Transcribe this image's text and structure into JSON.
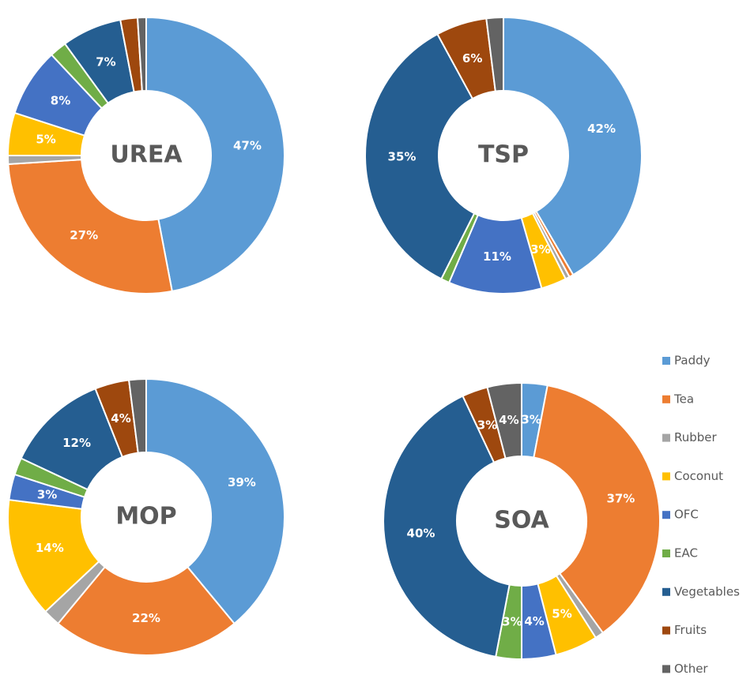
{
  "chart_data": [
    {
      "type": "donut",
      "title": "UREA",
      "categories": [
        "Paddy",
        "Tea",
        "Rubber",
        "Coconut",
        "OFC",
        "EAC",
        "Vegetables",
        "Fruits",
        "Other"
      ],
      "values": [
        47,
        27,
        1,
        5,
        8,
        2,
        7,
        2,
        1
      ],
      "value_labels": [
        "47%",
        "27%",
        null,
        "5%",
        "8%",
        null,
        "7%",
        null,
        null
      ],
      "colors": [
        "#5b9bd5",
        "#ed7d31",
        "#a5a5a5",
        "#ffc000",
        "#4472c4",
        "#70ad47",
        "#255e91",
        "#9e480e",
        "#636363"
      ]
    },
    {
      "type": "donut",
      "title": "TSP",
      "categories": [
        "Paddy",
        "Tea",
        "Rubber",
        "Coconut",
        "OFC",
        "EAC",
        "Vegetables",
        "Fruits",
        "Other"
      ],
      "values": [
        42,
        0.5,
        0.5,
        3,
        11,
        1,
        35,
        6,
        2
      ],
      "value_labels": [
        "42%",
        null,
        null,
        "3%",
        "11%",
        null,
        "35%",
        "6%",
        null
      ],
      "colors": [
        "#5b9bd5",
        "#ed7d31",
        "#a5a5a5",
        "#ffc000",
        "#4472c4",
        "#70ad47",
        "#255e91",
        "#9e480e",
        "#636363"
      ]
    },
    {
      "type": "donut",
      "title": "MOP",
      "categories": [
        "Paddy",
        "Tea",
        "Rubber",
        "Coconut",
        "OFC",
        "EAC",
        "Vegetables",
        "Fruits",
        "Other"
      ],
      "values": [
        39,
        22,
        2,
        14,
        3,
        2,
        12,
        4,
        2
      ],
      "value_labels": [
        "39%",
        "22%",
        null,
        "14%",
        "3%",
        null,
        "12%",
        "4%",
        null
      ],
      "colors": [
        "#5b9bd5",
        "#ed7d31",
        "#a5a5a5",
        "#ffc000",
        "#4472c4",
        "#70ad47",
        "#255e91",
        "#9e480e",
        "#636363"
      ]
    },
    {
      "type": "donut",
      "title": "SOA",
      "categories": [
        "Paddy",
        "Tea",
        "Rubber",
        "Coconut",
        "OFC",
        "EAC",
        "Vegetables",
        "Fruits",
        "Other"
      ],
      "values": [
        3,
        37,
        1,
        5,
        4,
        3,
        40,
        3,
        4
      ],
      "value_labels": [
        "3%",
        "37%",
        null,
        "5%",
        "4%",
        "3%",
        "40%",
        "3%",
        "4%"
      ],
      "colors": [
        "#5b9bd5",
        "#ed7d31",
        "#a5a5a5",
        "#ffc000",
        "#4472c4",
        "#70ad47",
        "#255e91",
        "#9e480e",
        "#636363"
      ]
    }
  ]
}
